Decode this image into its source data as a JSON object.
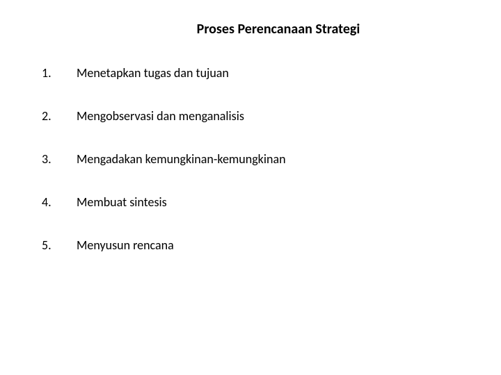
{
  "title": "Proses Perencanaan Strategi",
  "items": [
    {
      "number": "1.",
      "text": "Menetapkan tugas dan tujuan"
    },
    {
      "number": "2.",
      "text": "Mengobservasi dan menganalisis"
    },
    {
      "number": "3.",
      "text": "Mengadakan kemungkinan-kemungkinan"
    },
    {
      "number": "4.",
      "text": "Membuat sintesis"
    },
    {
      "number": "5.",
      "text": "Menyusun rencana"
    }
  ],
  "styling": {
    "background_color": "#ffffff",
    "text_color": "#000000",
    "title_fontsize": 20,
    "title_fontweight": "bold",
    "body_fontsize": 18,
    "font_family": "Calibri, Arial, sans-serif",
    "item_spacing": 40,
    "number_column_width": 50
  }
}
